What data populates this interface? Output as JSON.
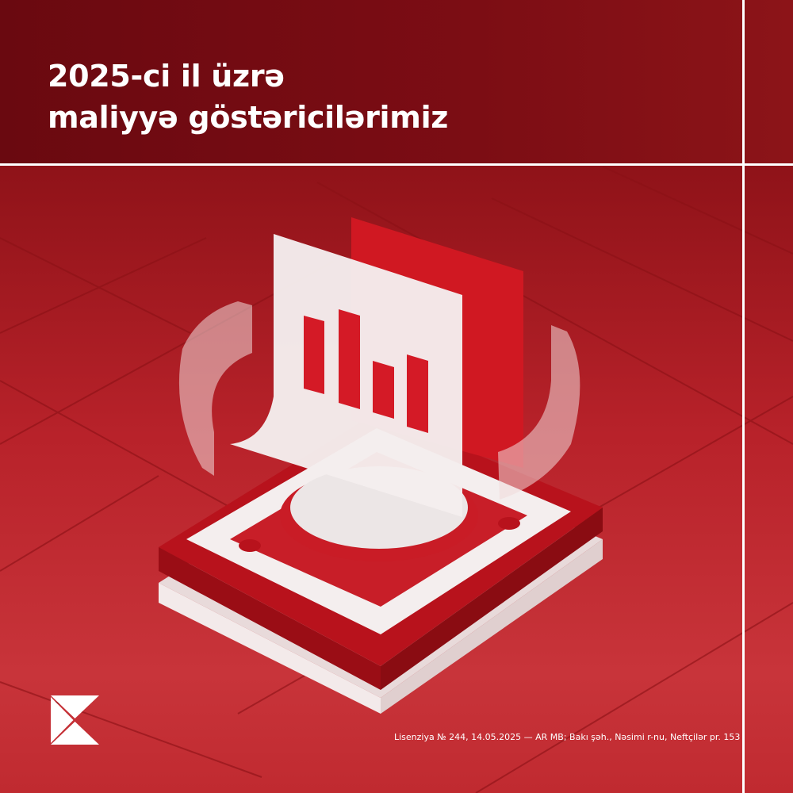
{
  "headline": {
    "line1": "2025-ci il üzrə",
    "line2": "maliyyə göstəricilərimiz"
  },
  "footer": {
    "license": "Lisenziya № 244, 14.05.2025 — AR MB; Bakı şəh., Nəsimi r-nu, Neftçilər pr. 153"
  },
  "colors": {
    "brand_red": "#c0242c",
    "dark_red": "#6e0a10",
    "white": "#ffffff"
  }
}
